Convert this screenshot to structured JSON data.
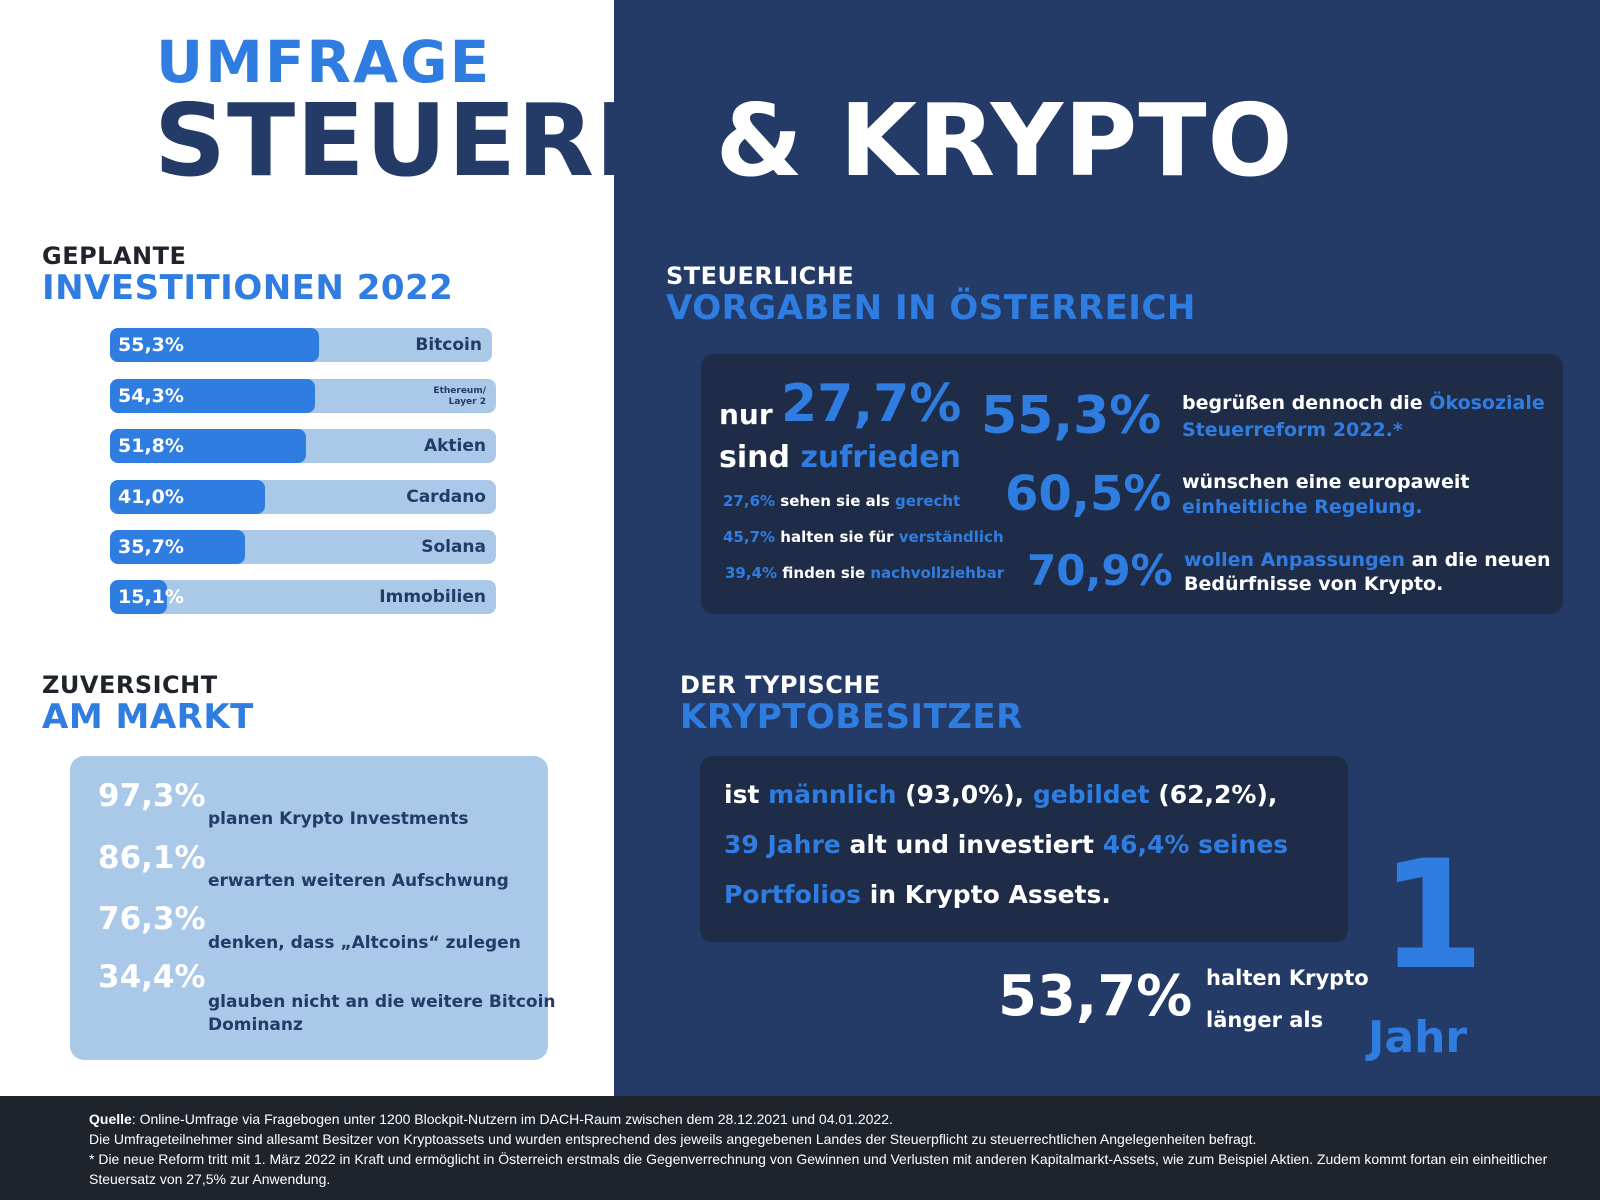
{
  "title": {
    "kicker": "UMFRAGE",
    "main_left": "STEUERN",
    "main_right": "& KRYPTO"
  },
  "investments": {
    "heading_small": "GEPLANTE",
    "heading_big": "INVESTITIONEN 2022",
    "pct_labels": [
      "55,3%",
      "54,3%",
      "51,8%",
      "41,0%",
      "35,7%",
      "15,1%"
    ],
    "labels": [
      "Bitcoin",
      "Ethereum/",
      "Layer 2",
      "Aktien",
      "Cardano",
      "Solana",
      "Immobilien"
    ]
  },
  "chart_data": {
    "type": "bar",
    "orientation": "horizontal",
    "categories": [
      "Bitcoin",
      "Ethereum/ Layer 2",
      "Aktien",
      "Cardano",
      "Solana",
      "Immobilien"
    ],
    "values": [
      55.3,
      54.3,
      51.8,
      41.0,
      35.7,
      15.1
    ],
    "title": "GEPLANTE INVESTITIONEN 2022",
    "xlim": [
      0,
      100
    ]
  },
  "confidence": {
    "heading_small": "ZUVERSICHT",
    "heading_big": "AM MARKT",
    "items": [
      {
        "pct": "97,3%",
        "text": "planen Krypto Investments"
      },
      {
        "pct": "86,1%",
        "text": "erwarten weiteren Aufschwung"
      },
      {
        "pct": "76,3%",
        "text": "denken, dass „Altcoins“ zulegen"
      },
      {
        "pct": "34,4%",
        "text": "glauben nicht an die weitere Bitcoin Dominanz"
      }
    ]
  },
  "tax": {
    "heading_small": "STEUERLICHE",
    "heading_big": "VORGABEN IN ÖSTERREICH",
    "nur": "nur",
    "big_pct": "27,7%",
    "sind": "sind",
    "zufrieden": "zufrieden",
    "sub": [
      {
        "pct": "27,6%",
        "text": "sehen sie als",
        "key": "gerecht"
      },
      {
        "pct": "45,7%",
        "text": "halten sie für",
        "key": "verständlich"
      },
      {
        "pct": "39,4%",
        "text": "finden sie",
        "key": "nachvollziehbar"
      }
    ],
    "stats": [
      {
        "pct": "55,3%",
        "line1_w": "begrüßen dennoch die ",
        "line1_b": "Ökosoziale",
        "line2_b": "Steuerreform 2022.*"
      },
      {
        "pct": "60,5%",
        "line1_w": "wünschen eine europaweit",
        "line2_b": "einheitliche Regelung."
      },
      {
        "pct": "70,9%",
        "line1_b": "wollen Anpassungen",
        "line1_w": " an die neuen",
        "line2_w": "Bedürfnisse von Krypto."
      }
    ]
  },
  "typical": {
    "heading_small": "DER TYPISCHE",
    "heading_big": "KRYPTOBESITZER",
    "l1": [
      "ist ",
      "männlich",
      " (93,0%), ",
      "gebildet",
      " (62,2%),"
    ],
    "l2": [
      "39 Jahre",
      " alt und investiert ",
      "46,4% seines"
    ],
    "l3": [
      "Portfolios",
      " in Krypto Assets."
    ],
    "hold_pct": "53,7%",
    "hold_text1": "halten Krypto",
    "hold_text2": "länger als",
    "one": "1",
    "year": "Jahr"
  },
  "footer": {
    "source_label": "Quelle",
    "line1": ": Online-Umfrage via Fragebogen unter 1200 Blockpit-Nutzern im DACH-Raum zwischen dem 28.12.2021 und 04.01.2022.",
    "line2": "Die Umfrageteilnehmer sind allesamt Besitzer von Kryptoassets und wurden entsprechend des jeweils angegebenen Landes der Steuerpflicht zu steuerrechtlichen Angelegenheiten befragt.",
    "line3": "* Die neue Reform tritt mit 1. März 2022 in Kraft und ermöglicht in Österreich erstmals die Gegenverrechnung von Gewinnen und Verlusten mit anderen Kapitalmarkt-Assets, wie zum Beispiel Aktien. Zudem kommt fortan ein einheitlicher Steuersatz von 27,5% zur Anwendung."
  },
  "colors": {
    "navy": "#233b66",
    "blue": "#2f7de1",
    "light_blue": "#aac8e8",
    "dark_box": "#1f2c47",
    "footer": "#1f232b"
  }
}
